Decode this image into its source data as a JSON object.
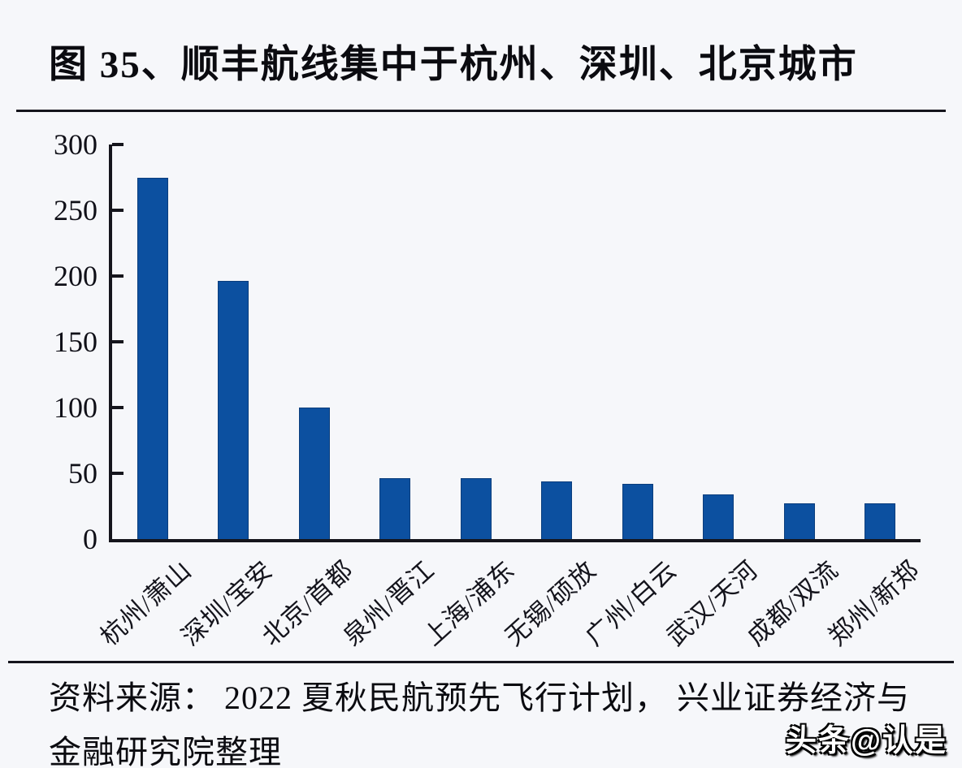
{
  "page": {
    "title": "图 35、顺丰航线集中于杭州、深圳、北京城市",
    "source_line1": "资料来源： 2022 夏秋民航预先飞行计划， 兴业证券经济与",
    "source_line2": "金融研究院整理",
    "watermark": "头条@认是"
  },
  "colors": {
    "bar_fill": "#0c50a0",
    "bar_edge": "#0a3d7c",
    "axis": "#15151c",
    "background": "#f6f7fa",
    "watermark_text": "#ffffff"
  },
  "chart_data": {
    "type": "bar",
    "title": "图 35、顺丰航线集中于杭州、深圳、北京城市",
    "categories": [
      "杭州/萧山",
      "深圳/宝安",
      "北京/首都",
      "泉州/晋江",
      "上海/浦东",
      "无锡/硕放",
      "广州/白云",
      "武汉/天河",
      "成都/双流",
      "郑州/新郑"
    ],
    "values": [
      275,
      196,
      100,
      46,
      46,
      44,
      42,
      34,
      27,
      27
    ],
    "xlabel": "",
    "ylabel": "",
    "ylim": [
      0,
      300
    ],
    "yticks": [
      0,
      50,
      100,
      150,
      200,
      250,
      300
    ],
    "grid": false,
    "legend": false,
    "bar_color": "#0c50a0"
  }
}
